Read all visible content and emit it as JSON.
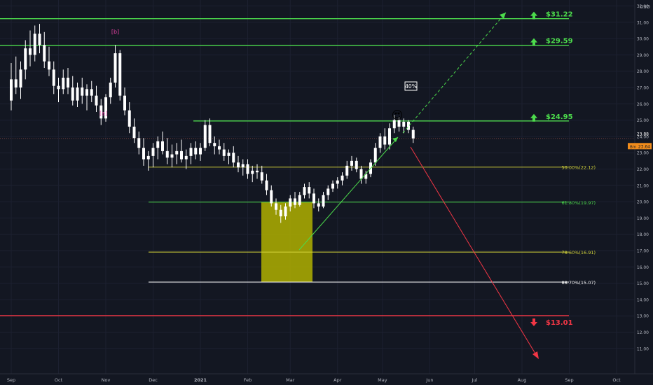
{
  "chart_data": {
    "type": "candlestick",
    "currency_label": "USD",
    "y_axis": {
      "min": 11.0,
      "max": 32.0,
      "ticks": [
        "32.00",
        "31.00",
        "30.00",
        "29.00",
        "28.00",
        "27.00",
        "26.00",
        "25.00",
        "24.00",
        "23.00",
        "22.00",
        "21.00",
        "20.00",
        "19.00",
        "18.00",
        "17.00",
        "16.00",
        "15.00",
        "14.00",
        "13.00",
        "12.00",
        "11.00"
      ]
    },
    "x_axis": {
      "labels": [
        {
          "text": "Sep",
          "t": 0.0
        },
        {
          "text": "Oct",
          "t": 1.0
        },
        {
          "text": "Nov",
          "t": 2.0
        },
        {
          "text": "Dec",
          "t": 3.0
        },
        {
          "text": "2021",
          "t": 4.0
        },
        {
          "text": "Feb",
          "t": 5.0
        },
        {
          "text": "Mar",
          "t": 5.9
        },
        {
          "text": "Apr",
          "t": 6.9
        },
        {
          "text": "May",
          "t": 7.85
        },
        {
          "text": "Jun",
          "t": 8.85
        },
        {
          "text": "Jul",
          "t": 9.8
        },
        {
          "text": "Aug",
          "t": 10.8
        },
        {
          "text": "Sep",
          "t": 11.8
        },
        {
          "text": "Oct",
          "t": 12.8
        }
      ]
    },
    "price_labels": {
      "last": "23.88",
      "prev": "23.64",
      "prev_tag": "Bm"
    },
    "targets": [
      {
        "price": 31.22,
        "label": "$31.22",
        "direction": "up",
        "color": "#4cdb4c"
      },
      {
        "price": 29.59,
        "label": "$29.59",
        "direction": "up",
        "color": "#4cdb4c"
      },
      {
        "price": 24.95,
        "label": "$24.95",
        "direction": "up",
        "color": "#4cdb4c"
      },
      {
        "price": 13.01,
        "label": "$13.01",
        "direction": "down",
        "color": "#f23645"
      }
    ],
    "fib_levels": [
      {
        "price": 22.12,
        "label": "50.00%(22.12)",
        "color": "#d4d43a"
      },
      {
        "price": 19.97,
        "label": "61.80%(19.97)",
        "color": "#4cdb4c"
      },
      {
        "price": 16.91,
        "label": "78.60%(16.91)",
        "color": "#d4d43a"
      },
      {
        "price": 15.07,
        "label": "88.70%(15.07)",
        "color": "#ffffff"
      }
    ],
    "wave_labels": [
      {
        "text": "[b]",
        "t": 2.2,
        "price": 30.3,
        "color": "#e040a0"
      },
      {
        "text": "[a]",
        "t": 1.95,
        "price": 25.3,
        "color": "#e040a0"
      }
    ],
    "percent_label": "40%",
    "emoji": "😍",
    "candles": [
      [
        0.0,
        26.2,
        28.5,
        25.6,
        27.5
      ],
      [
        0.1,
        27.5,
        28.9,
        26.6,
        27.0
      ],
      [
        0.2,
        27.0,
        28.6,
        26.3,
        28.1
      ],
      [
        0.3,
        28.1,
        29.9,
        27.5,
        29.4
      ],
      [
        0.4,
        29.4,
        30.5,
        28.3,
        29.0
      ],
      [
        0.5,
        29.0,
        30.8,
        28.6,
        30.3
      ],
      [
        0.6,
        30.3,
        30.9,
        29.1,
        29.6
      ],
      [
        0.7,
        29.6,
        30.4,
        28.2,
        28.6
      ],
      [
        0.8,
        28.6,
        29.5,
        27.7,
        28.1
      ],
      [
        0.9,
        28.1,
        28.6,
        26.6,
        27.1
      ],
      [
        1.0,
        27.1,
        27.6,
        26.1,
        26.9
      ],
      [
        1.1,
        26.9,
        28.1,
        26.6,
        27.6
      ],
      [
        1.2,
        27.6,
        28.2,
        26.6,
        27.0
      ],
      [
        1.3,
        27.0,
        27.7,
        25.9,
        26.2
      ],
      [
        1.4,
        26.2,
        27.3,
        25.8,
        27.0
      ],
      [
        1.5,
        27.0,
        27.6,
        26.0,
        26.5
      ],
      [
        1.6,
        26.5,
        27.2,
        25.6,
        26.9
      ],
      [
        1.7,
        26.9,
        27.4,
        26.1,
        26.5
      ],
      [
        1.8,
        26.5,
        27.1,
        25.5,
        25.9
      ],
      [
        1.9,
        25.9,
        26.3,
        24.7,
        25.1
      ],
      [
        2.0,
        25.1,
        26.6,
        24.9,
        26.4
      ],
      [
        2.1,
        26.4,
        27.6,
        26.0,
        27.3
      ],
      [
        2.2,
        27.3,
        29.6,
        27.0,
        29.1
      ],
      [
        2.3,
        29.1,
        29.3,
        26.2,
        26.5
      ],
      [
        2.4,
        26.5,
        27.0,
        25.3,
        25.6
      ],
      [
        2.5,
        25.6,
        26.1,
        24.2,
        24.6
      ],
      [
        2.6,
        24.6,
        25.1,
        23.6,
        23.9
      ],
      [
        2.7,
        23.9,
        24.3,
        22.9,
        23.3
      ],
      [
        2.8,
        23.3,
        23.9,
        22.2,
        22.6
      ],
      [
        2.9,
        22.6,
        23.1,
        21.9,
        22.8
      ],
      [
        3.0,
        22.8,
        23.6,
        22.1,
        23.3
      ],
      [
        3.1,
        23.3,
        24.0,
        22.6,
        23.7
      ],
      [
        3.2,
        23.7,
        24.3,
        22.9,
        23.1
      ],
      [
        3.3,
        23.1,
        23.9,
        22.3,
        22.7
      ],
      [
        3.4,
        22.7,
        23.5,
        22.1,
        22.9
      ],
      [
        3.5,
        22.9,
        23.6,
        22.3,
        23.1
      ],
      [
        3.6,
        23.1,
        23.8,
        22.4,
        22.6
      ],
      [
        3.7,
        22.6,
        23.2,
        22.0,
        22.8
      ],
      [
        3.8,
        22.8,
        23.6,
        22.3,
        23.3
      ],
      [
        3.9,
        23.3,
        23.7,
        22.6,
        22.9
      ],
      [
        4.0,
        22.9,
        23.6,
        22.5,
        23.3
      ],
      [
        4.1,
        23.3,
        25.0,
        23.1,
        24.7
      ],
      [
        4.2,
        24.7,
        25.1,
        23.4,
        23.6
      ],
      [
        4.3,
        23.6,
        24.0,
        22.9,
        23.4
      ],
      [
        4.4,
        23.4,
        23.8,
        22.9,
        23.2
      ],
      [
        4.5,
        23.2,
        23.6,
        22.5,
        22.8
      ],
      [
        4.6,
        22.8,
        23.2,
        22.3,
        23.0
      ],
      [
        4.7,
        23.0,
        23.4,
        22.1,
        22.4
      ],
      [
        4.8,
        22.4,
        22.8,
        21.8,
        22.1
      ],
      [
        4.9,
        22.1,
        22.6,
        21.6,
        22.3
      ],
      [
        5.0,
        22.3,
        22.6,
        21.4,
        21.7
      ],
      [
        5.1,
        21.7,
        22.2,
        21.2,
        21.9
      ],
      [
        5.2,
        21.9,
        22.3,
        21.4,
        21.8
      ],
      [
        5.3,
        21.8,
        22.2,
        21.1,
        21.3
      ],
      [
        5.4,
        21.3,
        21.7,
        20.4,
        20.7
      ],
      [
        5.5,
        20.7,
        21.0,
        19.7,
        19.9
      ],
      [
        5.6,
        19.9,
        20.2,
        19.2,
        19.5
      ],
      [
        5.7,
        19.5,
        19.8,
        18.7,
        19.1
      ],
      [
        5.8,
        19.1,
        19.9,
        18.9,
        19.7
      ],
      [
        5.9,
        19.7,
        20.4,
        19.4,
        20.2
      ],
      [
        6.0,
        20.2,
        20.6,
        19.6,
        19.8
      ],
      [
        6.1,
        19.8,
        20.6,
        19.7,
        20.4
      ],
      [
        6.2,
        20.4,
        21.1,
        20.2,
        20.9
      ],
      [
        6.3,
        20.9,
        21.2,
        20.2,
        20.5
      ],
      [
        6.4,
        20.5,
        20.8,
        19.6,
        19.9
      ],
      [
        6.5,
        19.9,
        20.2,
        19.4,
        19.7
      ],
      [
        6.6,
        19.7,
        20.6,
        19.6,
        20.4
      ],
      [
        6.7,
        20.4,
        21.0,
        20.1,
        20.8
      ],
      [
        6.8,
        20.8,
        21.3,
        20.6,
        21.1
      ],
      [
        6.9,
        21.1,
        21.5,
        20.8,
        21.3
      ],
      [
        7.0,
        21.3,
        21.8,
        21.0,
        21.6
      ],
      [
        7.1,
        21.6,
        22.5,
        21.4,
        22.2
      ],
      [
        7.2,
        22.2,
        22.8,
        21.9,
        22.5
      ],
      [
        7.3,
        22.5,
        22.7,
        21.8,
        22.0
      ],
      [
        7.4,
        22.0,
        22.2,
        21.1,
        21.4
      ],
      [
        7.5,
        21.4,
        21.9,
        21.1,
        21.7
      ],
      [
        7.6,
        21.7,
        22.6,
        21.5,
        22.4
      ],
      [
        7.7,
        22.4,
        23.6,
        22.2,
        23.3
      ],
      [
        7.8,
        23.3,
        24.2,
        23.0,
        24.0
      ],
      [
        7.9,
        24.0,
        24.5,
        23.2,
        23.5
      ],
      [
        8.0,
        23.5,
        24.8,
        23.2,
        24.5
      ],
      [
        8.1,
        24.5,
        25.3,
        24.2,
        25.0
      ],
      [
        8.2,
        25.0,
        25.2,
        24.3,
        24.6
      ],
      [
        8.3,
        24.6,
        25.1,
        24.2,
        24.9
      ],
      [
        8.4,
        24.9,
        25.0,
        24.2,
        24.4
      ],
      [
        8.5,
        24.4,
        24.6,
        23.6,
        23.88
      ]
    ]
  }
}
